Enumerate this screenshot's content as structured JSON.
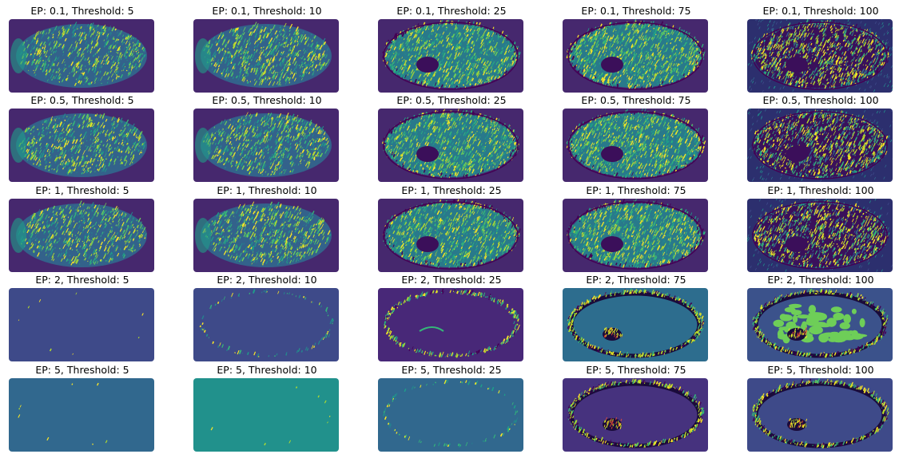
{
  "chart_data": {
    "type": "heatmap",
    "colormap": "viridis",
    "layout": "5 rows x 5 columns image grid",
    "row_ep_values": [
      "0.1",
      "0.5",
      "1",
      "2",
      "5"
    ],
    "column_thresholds": [
      5,
      10,
      25,
      75,
      100
    ],
    "panels": [
      {
        "title": "EP: 0.1, Threshold: 5",
        "ep": "0.1",
        "threshold": 5,
        "style": "dense",
        "level": 0.25
      },
      {
        "title": "EP: 0.1, Threshold: 10",
        "ep": "0.1",
        "threshold": 10,
        "style": "dense",
        "level": 0.35
      },
      {
        "title": "EP: 0.1, Threshold: 25",
        "ep": "0.1",
        "threshold": 25,
        "style": "dense-lesion",
        "level": 0.55
      },
      {
        "title": "EP: 0.1, Threshold: 75",
        "ep": "0.1",
        "threshold": 75,
        "style": "dense-lesion",
        "level": 0.7
      },
      {
        "title": "EP: 0.1, Threshold: 100",
        "ep": "0.1",
        "threshold": 100,
        "style": "dark-speckle",
        "level": 0.5
      },
      {
        "title": "EP: 0.5, Threshold: 5",
        "ep": "0.5",
        "threshold": 5,
        "style": "dense",
        "level": 0.25
      },
      {
        "title": "EP: 0.5, Threshold: 10",
        "ep": "0.5",
        "threshold": 10,
        "style": "dense",
        "level": 0.35
      },
      {
        "title": "EP: 0.5, Threshold: 25",
        "ep": "0.5",
        "threshold": 25,
        "style": "dense-lesion",
        "level": 0.55
      },
      {
        "title": "EP: 0.5, Threshold: 75",
        "ep": "0.5",
        "threshold": 75,
        "style": "dense-lesion",
        "level": 0.7
      },
      {
        "title": "EP: 0.5, Threshold: 100",
        "ep": "0.5",
        "threshold": 100,
        "style": "dark-speckle",
        "level": 0.5
      },
      {
        "title": "EP: 1, Threshold: 5",
        "ep": "1",
        "threshold": 5,
        "style": "dense",
        "level": 0.25
      },
      {
        "title": "EP: 1, Threshold: 10",
        "ep": "1",
        "threshold": 10,
        "style": "dense",
        "level": 0.35
      },
      {
        "title": "EP: 1, Threshold: 25",
        "ep": "1",
        "threshold": 25,
        "style": "dense-lesion",
        "level": 0.55
      },
      {
        "title": "EP: 1, Threshold: 75",
        "ep": "1",
        "threshold": 75,
        "style": "dense-lesion",
        "level": 0.7
      },
      {
        "title": "EP: 1, Threshold: 100",
        "ep": "1",
        "threshold": 100,
        "style": "dark-speckle",
        "level": 0.5
      },
      {
        "title": "EP: 2, Threshold: 5",
        "ep": "2",
        "threshold": 5,
        "style": "flat",
        "bg": "#3e4a89",
        "level": 0.05
      },
      {
        "title": "EP: 2, Threshold: 10",
        "ep": "2",
        "threshold": 10,
        "style": "faint-ring",
        "bg": "#3e4a89",
        "level": 0.2
      },
      {
        "title": "EP: 2, Threshold: 25",
        "ep": "2",
        "threshold": 25,
        "style": "ring",
        "bg": "#482878",
        "level": 0.35
      },
      {
        "title": "EP: 2, Threshold: 75",
        "ep": "2",
        "threshold": 75,
        "style": "ring-lesion",
        "bg": "#2d6d8e",
        "level": 0.6
      },
      {
        "title": "EP: 2, Threshold: 100",
        "ep": "2",
        "threshold": 100,
        "style": "ring-blob",
        "bg": "#3b528b",
        "level": 0.8
      },
      {
        "title": "EP: 5, Threshold: 5",
        "ep": "5",
        "threshold": 5,
        "style": "flat",
        "bg": "#31688e",
        "level": 0.05
      },
      {
        "title": "EP: 5, Threshold: 10",
        "ep": "5",
        "threshold": 10,
        "style": "flat",
        "bg": "#21918c",
        "level": 0.1
      },
      {
        "title": "EP: 5, Threshold: 25",
        "ep": "5",
        "threshold": 25,
        "style": "faint-ring",
        "bg": "#31688e",
        "level": 0.25
      },
      {
        "title": "EP: 5, Threshold: 75",
        "ep": "5",
        "threshold": 75,
        "style": "ring-lesion",
        "bg": "#46327e",
        "level": 0.55
      },
      {
        "title": "EP: 5, Threshold: 100",
        "ep": "5",
        "threshold": 100,
        "style": "ring-lesion",
        "bg": "#3e4a89",
        "level": 0.65
      }
    ]
  }
}
